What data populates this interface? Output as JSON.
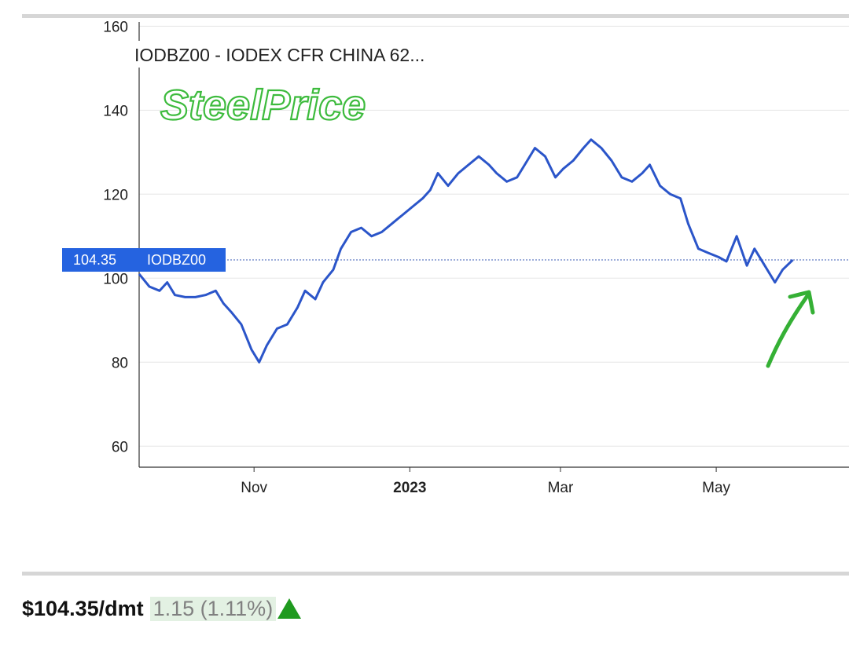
{
  "chart_data": {
    "type": "line",
    "title": "IODBZ00 - IODEX CFR CHINA 62...",
    "series": [
      {
        "name": "IODBZ00",
        "color": "#2b55c9",
        "x": [
          "2022-09-17",
          "2022-09-21",
          "2022-09-25",
          "2022-09-28",
          "2022-10-01",
          "2022-10-05",
          "2022-10-09",
          "2022-10-13",
          "2022-10-17",
          "2022-10-20",
          "2022-10-23",
          "2022-10-27",
          "2022-10-31",
          "2022-11-03",
          "2022-11-06",
          "2022-11-10",
          "2022-11-14",
          "2022-11-18",
          "2022-11-21",
          "2022-11-25",
          "2022-11-28",
          "2022-12-02",
          "2022-12-05",
          "2022-12-09",
          "2022-12-13",
          "2022-12-17",
          "2022-12-21",
          "2022-12-25",
          "2022-12-29",
          "2023-01-02",
          "2023-01-06",
          "2023-01-09",
          "2023-01-12",
          "2023-01-16",
          "2023-01-20",
          "2023-01-24",
          "2023-01-28",
          "2023-02-01",
          "2023-02-04",
          "2023-02-08",
          "2023-02-12",
          "2023-02-15",
          "2023-02-19",
          "2023-02-23",
          "2023-02-27",
          "2023-03-02",
          "2023-03-06",
          "2023-03-10",
          "2023-03-13",
          "2023-03-17",
          "2023-03-21",
          "2023-03-25",
          "2023-03-29",
          "2023-04-02",
          "2023-04-05",
          "2023-04-09",
          "2023-04-13",
          "2023-04-17",
          "2023-04-20",
          "2023-04-24",
          "2023-04-28",
          "2023-05-02",
          "2023-05-05",
          "2023-05-09",
          "2023-05-13",
          "2023-05-16",
          "2023-05-20",
          "2023-05-24",
          "2023-05-27",
          "2023-05-31"
        ],
        "values": [
          101,
          98,
          97,
          99,
          96,
          95.5,
          95.5,
          96,
          97,
          94,
          92,
          89,
          83,
          80,
          84,
          88,
          89,
          93,
          97,
          95,
          99,
          102,
          107,
          111,
          112,
          110,
          111,
          113,
          115,
          117,
          119,
          121,
          125,
          122,
          125,
          127,
          129,
          127,
          125,
          123,
          124,
          127,
          131,
          129,
          124,
          126,
          128,
          131,
          133,
          131,
          128,
          124,
          123,
          125,
          127,
          122,
          120,
          119,
          113,
          107,
          106,
          105,
          104,
          110,
          103,
          107,
          103,
          99,
          102,
          104.35
        ]
      }
    ],
    "ylim": [
      55,
      161
    ],
    "yticks": [
      60,
      80,
      100,
      120,
      140,
      160
    ],
    "xticks": [
      {
        "date": "2022-11-01",
        "label": "Nov",
        "bold": false
      },
      {
        "date": "2023-01-01",
        "label": "2023",
        "bold": true
      },
      {
        "date": "2023-03-01",
        "label": "Mar",
        "bold": false
      },
      {
        "date": "2023-05-01",
        "label": "May",
        "bold": false
      }
    ],
    "xlim": [
      "2022-09-17",
      "2023-06-22"
    ],
    "grid": true,
    "last_value_label": "104.35",
    "last_value_series_label": "IODBZ00",
    "last_value": 104.35
  },
  "watermark": "SteelPrice",
  "footer": {
    "price": "$104.35/dmt",
    "change": "1.15 (1.11%)",
    "direction": "up"
  }
}
